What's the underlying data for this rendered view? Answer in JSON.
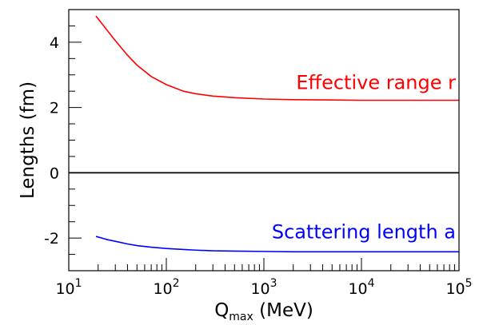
{
  "chart_data": {
    "type": "line",
    "title": "",
    "xlabel_main": "Q",
    "xlabel_sub": "max",
    "xlabel_unit": " (MeV)",
    "ylabel": "Lengths (fm)",
    "x_scale": "log",
    "xlim": [
      10,
      100000
    ],
    "ylim": [
      -3,
      5
    ],
    "x_tick_labels": [
      {
        "base": "10",
        "exp": "1",
        "value": 10
      },
      {
        "base": "10",
        "exp": "2",
        "value": 100
      },
      {
        "base": "10",
        "exp": "3",
        "value": 1000
      },
      {
        "base": "10",
        "exp": "4",
        "value": 10000
      },
      {
        "base": "10",
        "exp": "5",
        "value": 100000
      }
    ],
    "y_ticks": [
      {
        "label": "4",
        "value": 4
      },
      {
        "label": "2",
        "value": 2
      },
      {
        "label": "0",
        "value": 0
      },
      {
        "label": "-2",
        "value": -2
      }
    ],
    "grid": false,
    "zero_line": true,
    "series": [
      {
        "name": "Effective range r",
        "color": "#ff0000",
        "x": [
          19,
          25,
          30,
          40,
          50,
          70,
          100,
          150,
          200,
          300,
          500,
          1000,
          2000,
          5000,
          10000,
          30000,
          100000
        ],
        "y": [
          4.8,
          4.35,
          4.05,
          3.6,
          3.3,
          2.95,
          2.7,
          2.5,
          2.42,
          2.35,
          2.3,
          2.26,
          2.24,
          2.23,
          2.22,
          2.22,
          2.22
        ]
      },
      {
        "name": "Scattering length a",
        "color": "#0000ff",
        "x": [
          19,
          25,
          30,
          40,
          50,
          70,
          100,
          150,
          200,
          300,
          500,
          1000,
          2000,
          5000,
          10000,
          30000,
          100000
        ],
        "y": [
          -1.95,
          -2.05,
          -2.1,
          -2.18,
          -2.23,
          -2.28,
          -2.32,
          -2.35,
          -2.37,
          -2.39,
          -2.4,
          -2.41,
          -2.42,
          -2.42,
          -2.42,
          -2.42,
          -2.42
        ]
      }
    ]
  }
}
